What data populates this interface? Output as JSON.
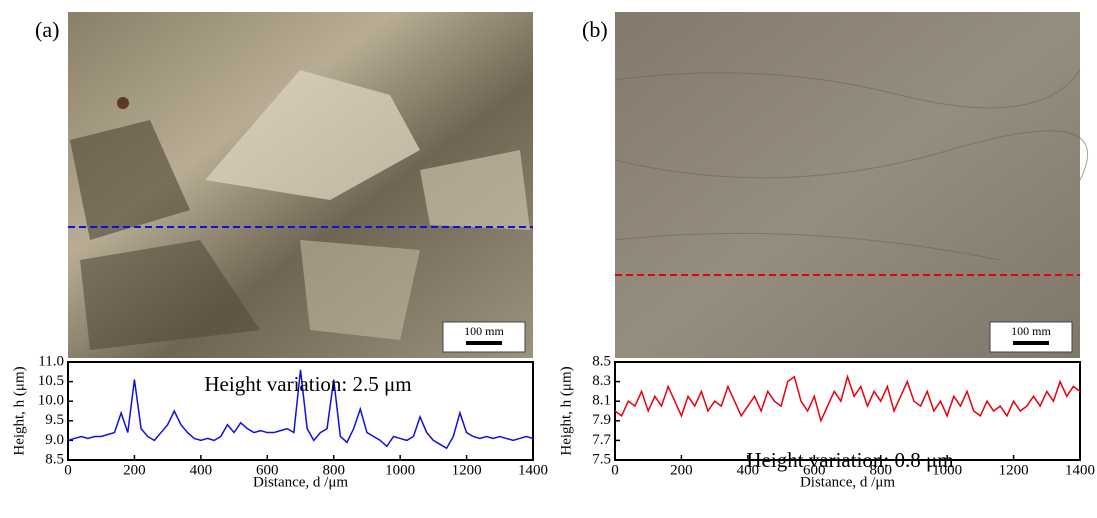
{
  "chart_data": [
    {
      "type": "line",
      "panel_label": "(a)",
      "scale_label": "100 mm",
      "annotation": "Height variation: 2.5 μm",
      "x_label": "Distance, d /μm",
      "y_label": "Height, h (μm)",
      "color": "#1010e0",
      "x": [
        0,
        20,
        40,
        60,
        80,
        100,
        120,
        140,
        160,
        180,
        200,
        220,
        240,
        260,
        280,
        300,
        320,
        340,
        360,
        380,
        400,
        420,
        440,
        460,
        480,
        500,
        520,
        540,
        560,
        580,
        600,
        620,
        640,
        660,
        680,
        700,
        720,
        740,
        760,
        780,
        800,
        820,
        840,
        860,
        880,
        900,
        920,
        940,
        960,
        980,
        1000,
        1020,
        1040,
        1060,
        1080,
        1100,
        1120,
        1140,
        1160,
        1180,
        1200,
        1220,
        1240,
        1260,
        1280,
        1300,
        1320,
        1340,
        1360,
        1380,
        1400
      ],
      "values": [
        9.0,
        9.05,
        9.1,
        9.05,
        9.1,
        9.1,
        9.15,
        9.2,
        9.7,
        9.2,
        10.55,
        9.3,
        9.1,
        9.0,
        9.2,
        9.4,
        9.75,
        9.4,
        9.2,
        9.05,
        9.0,
        9.05,
        9.0,
        9.1,
        9.4,
        9.2,
        9.45,
        9.3,
        9.2,
        9.25,
        9.2,
        9.2,
        9.25,
        9.3,
        9.2,
        10.8,
        9.3,
        9.0,
        9.2,
        9.3,
        10.55,
        9.1,
        8.95,
        9.3,
        9.8,
        9.2,
        9.1,
        9.0,
        8.85,
        9.1,
        9.05,
        9.0,
        9.1,
        9.6,
        9.2,
        9.0,
        8.9,
        8.8,
        9.1,
        9.7,
        9.2,
        9.1,
        9.05,
        9.1,
        9.05,
        9.1,
        9.05,
        9.0,
        9.05,
        9.1,
        9.05
      ],
      "xlim": [
        0,
        1400
      ],
      "xticks": [
        0,
        200,
        400,
        600,
        800,
        1000,
        1200,
        1400
      ],
      "ylim": [
        8.5,
        11.0
      ],
      "yticks": [
        8.5,
        {
          "value": 9.0,
          "label": "9.0"
        },
        9.5,
        {
          "value": 10.0,
          "label": "10.0"
        },
        10.5,
        {
          "value": 11.0,
          "label": "11.0"
        }
      ]
    },
    {
      "type": "line",
      "panel_label": "(b)",
      "scale_label": "100 mm",
      "annotation": "Height variation: 0.8 μm",
      "x_label": "Distance, d /μm",
      "y_label": "Height, h (μm)",
      "color": "#e80010",
      "x": [
        0,
        20,
        40,
        60,
        80,
        100,
        120,
        140,
        160,
        180,
        200,
        220,
        240,
        260,
        280,
        300,
        320,
        340,
        360,
        380,
        400,
        420,
        440,
        460,
        480,
        500,
        520,
        540,
        560,
        580,
        600,
        620,
        640,
        660,
        680,
        700,
        720,
        740,
        760,
        780,
        800,
        820,
        840,
        860,
        880,
        900,
        920,
        940,
        960,
        980,
        1000,
        1020,
        1040,
        1060,
        1080,
        1100,
        1120,
        1140,
        1160,
        1180,
        1200,
        1220,
        1240,
        1260,
        1280,
        1300,
        1320,
        1340,
        1360,
        1380,
        1400
      ],
      "values": [
        8.0,
        7.95,
        8.1,
        8.05,
        8.2,
        8.0,
        8.15,
        8.05,
        8.25,
        8.1,
        7.95,
        8.15,
        8.05,
        8.2,
        8.0,
        8.1,
        8.05,
        8.25,
        8.1,
        7.95,
        8.05,
        8.15,
        8.0,
        8.2,
        8.1,
        8.05,
        8.3,
        8.35,
        8.1,
        8.0,
        8.15,
        7.9,
        8.05,
        8.2,
        8.1,
        8.35,
        8.15,
        8.25,
        8.05,
        8.2,
        8.1,
        8.25,
        8.0,
        8.15,
        8.3,
        8.1,
        8.05,
        8.2,
        8.0,
        8.1,
        7.95,
        8.15,
        8.05,
        8.2,
        8.0,
        7.95,
        8.1,
        8.0,
        8.05,
        7.95,
        8.1,
        8.0,
        8.05,
        8.15,
        8.05,
        8.2,
        8.1,
        8.3,
        8.15,
        8.25,
        8.2
      ],
      "xlim": [
        0,
        1400
      ],
      "xticks": [
        0,
        200,
        400,
        600,
        800,
        1000,
        1200,
        1400
      ],
      "ylim": [
        7.5,
        8.5
      ],
      "yticks": [
        7.5,
        7.7,
        7.9,
        8.1,
        8.3,
        8.5
      ]
    }
  ]
}
